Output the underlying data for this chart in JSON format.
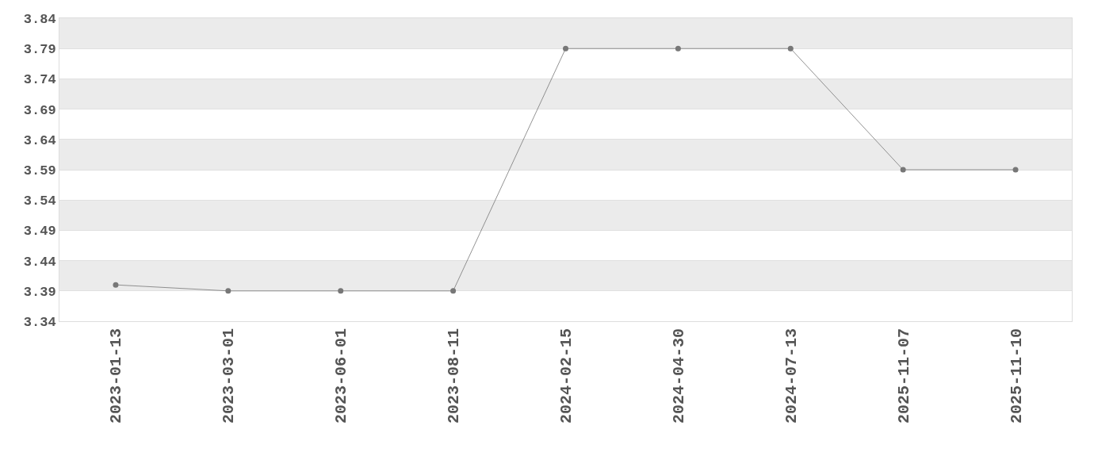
{
  "chart_data": {
    "type": "line",
    "categories": [
      "2023-01-13",
      "2023-03-01",
      "2023-06-01",
      "2023-08-11",
      "2024-02-15",
      "2024-04-30",
      "2024-07-13",
      "2025-11-07",
      "2025-11-10"
    ],
    "series": [
      {
        "color": "#777777",
        "values": [
          3.4,
          3.39,
          3.39,
          3.39,
          3.79,
          3.79,
          3.79,
          3.59,
          3.59
        ]
      }
    ],
    "ylim": [
      3.34,
      3.84
    ],
    "yticks": [
      3.34,
      3.39,
      3.44,
      3.49,
      3.54,
      3.59,
      3.64,
      3.69,
      3.74,
      3.79,
      3.84
    ],
    "grid": "y",
    "marker": "circle",
    "line_style": "solid"
  }
}
